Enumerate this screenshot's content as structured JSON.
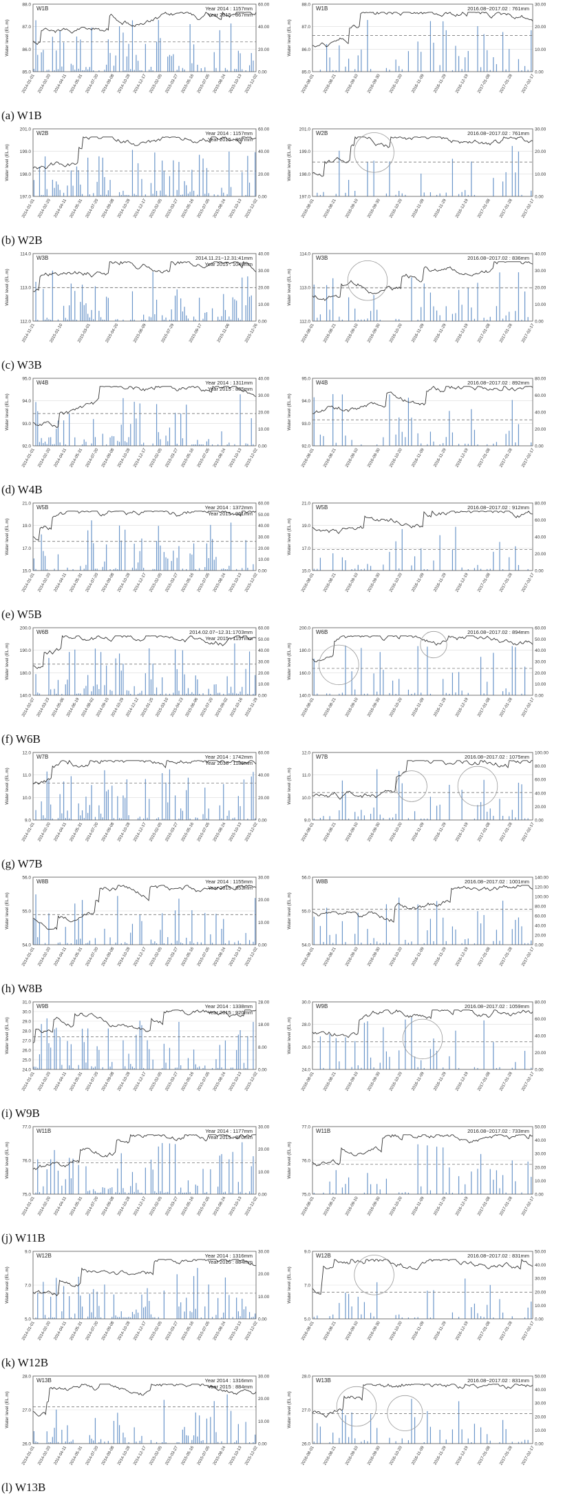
{
  "figure": {
    "rows": [
      {
        "caption": "(a) W1B",
        "left": {
          "well": "W1B",
          "lines": [
            "Year 2014 : 1157mm",
            "Year 2015 : 867mm"
          ],
          "ylabel": "Water level (EL.m)",
          "y_ticks": [
            "88.0",
            "87.0",
            "86.0",
            "85.0"
          ],
          "r_ticks": [
            "60.00",
            "40.00",
            "20.00",
            "0.00"
          ],
          "x_ticks": [
            "2014-01-01",
            "2014-02-20",
            "2014-04-11",
            "2014-05-31",
            "2014-07-20",
            "2014-09-08",
            "2014-10-28",
            "2014-12-17",
            "2015-02-05",
            "2015-03-27",
            "2015-05-16",
            "2015-07-05",
            "2015-08-24",
            "2015-10-13",
            "2015-12-02"
          ]
        },
        "right": {
          "well": "W1B",
          "lines": [
            "2016.08~2017.02 : 761mm"
          ],
          "y_ticks": [
            "88.0",
            "87.0",
            "86.0",
            "85.0"
          ],
          "r_ticks": [
            "30.00",
            "20.00",
            "10.00",
            "0.00"
          ],
          "x_ticks": [
            "2016-08-01",
            "2016-08-21",
            "2016-09-10",
            "2016-09-30",
            "2016-10-20",
            "2016-11-09",
            "2016-11-29",
            "2016-12-19",
            "2017-01-08",
            "2017-01-28",
            "2017-02-17"
          ]
        }
      },
      {
        "caption": "(b) W2B",
        "left": {
          "well": "W2B",
          "lines": [
            "Year 2014 : 1157mm",
            "Year 2015 : 867mm"
          ],
          "ylabel": "Water level (EL.m)",
          "y_ticks": [
            "201.0",
            "199.0",
            "198.0",
            "197.0"
          ],
          "r_ticks": [
            "60.00",
            "40.00",
            "20.00",
            "0.00"
          ],
          "x_ticks": [
            "2014-01-01",
            "2014-02-20",
            "2014-04-11",
            "2014-05-31",
            "2014-07-20",
            "2014-09-08",
            "2014-10-28",
            "2014-12-17",
            "2015-02-05",
            "2015-03-27",
            "2015-05-16",
            "2015-07-05",
            "2015-08-24",
            "2015-10-13",
            "2015-12-02"
          ]
        },
        "right": {
          "well": "W2B",
          "lines": [
            "2016.08~2017.02 : 761mm"
          ],
          "y_ticks": [
            "201.0",
            "199.0",
            "198.0",
            "197.0"
          ],
          "r_ticks": [
            "30.00",
            "20.00",
            "10.00",
            "0.00"
          ],
          "x_ticks": [
            "2016-08-01",
            "2016-08-21",
            "2016-09-10",
            "2016-09-30",
            "2016-10-20",
            "2016-11-09",
            "2016-11-29",
            "2016-12-19",
            "2017-01-08",
            "2017-01-28",
            "2017-02-17"
          ]
        }
      },
      {
        "caption": "(c) W3B",
        "left": {
          "well": "W3B",
          "lines": [
            "2014.11.21~12.31:41mm",
            "Year 2015 : 1040mm"
          ],
          "ylabel": "Water level (EL.m)",
          "y_ticks": [
            "114.0",
            "113.0",
            "112.0"
          ],
          "r_ticks": [
            "40.00",
            "30.00",
            "20.00",
            "10.00",
            "0.00"
          ],
          "x_ticks": [
            "2014-11-21",
            "2015-01-10",
            "2015-03-01",
            "2015-04-20",
            "2015-06-09",
            "2015-07-29",
            "2015-09-17",
            "2015-11-06",
            "2015-12-26"
          ]
        },
        "right": {
          "well": "W3B",
          "lines": [
            "2016.08~2017.02 : 836mm"
          ],
          "y_ticks": [
            "114.0",
            "113.0",
            "112.0"
          ],
          "r_ticks": [
            "40.00",
            "30.00",
            "20.00",
            "10.00",
            "0.00"
          ],
          "x_ticks": [
            "2016-08-01",
            "2016-08-21",
            "2016-09-10",
            "2016-09-30",
            "2016-10-20",
            "2016-11-09",
            "2016-11-29",
            "2016-12-19",
            "2017-01-08",
            "2017-01-28",
            "2017-02-17"
          ]
        }
      },
      {
        "caption": "(d) W4B",
        "left": {
          "well": "W4B",
          "lines": [
            "Year 2014 : 1311mm",
            "Year 2015 : 885mm"
          ],
          "ylabel": "Water level (EL.m)",
          "y_ticks": [
            "95.0",
            "94.0",
            "93.0",
            "92.0"
          ],
          "r_ticks": [
            "40.00",
            "30.00",
            "20.00",
            "10.00",
            "0.00"
          ],
          "x_ticks": [
            "2014-01-01",
            "2014-02-20",
            "2014-04-11",
            "2014-05-31",
            "2014-07-20",
            "2014-09-08",
            "2014-10-28",
            "2014-12-17",
            "2015-02-05",
            "2015-03-27",
            "2015-05-16",
            "2015-07-05",
            "2015-08-24",
            "2015-10-13",
            "2015-12-02"
          ]
        },
        "right": {
          "well": "W4B",
          "lines": [
            "2016.08~2017.02 : 892mm"
          ],
          "y_ticks": [
            "95.0",
            "94.0",
            "93.0",
            "92.0"
          ],
          "r_ticks": [
            "80.00",
            "60.00",
            "40.00",
            "20.00",
            "0.00"
          ],
          "x_ticks": [
            "2016-08-01",
            "2016-08-21",
            "2016-09-10",
            "2016-09-30",
            "2016-10-20",
            "2016-11-09",
            "2016-11-29",
            "2016-12-19",
            "2017-01-08",
            "2017-01-28",
            "2017-02-17"
          ]
        }
      },
      {
        "caption": "(e) W5B",
        "left": {
          "well": "W5B",
          "lines": [
            "Year 2014 : 1372mm",
            "Year 2015 : 961mm"
          ],
          "ylabel": "Water level (EL.m)",
          "y_ticks": [
            "21.0",
            "19.0",
            "17.0",
            "15.0"
          ],
          "r_ticks": [
            "60.00",
            "50.00",
            "40.00",
            "30.00",
            "20.00",
            "10.00",
            "0.00"
          ],
          "x_ticks": [
            "2014-01-01",
            "2014-02-20",
            "2014-04-11",
            "2014-05-31",
            "2014-07-20",
            "2014-09-08",
            "2014-10-28",
            "2014-12-17",
            "2015-02-05",
            "2015-03-27",
            "2015-05-16",
            "2015-07-05",
            "2015-08-24",
            "2015-10-13",
            "2015-12-02"
          ]
        },
        "right": {
          "well": "W5B",
          "lines": [
            "2016.08~2017.02 : 912mm"
          ],
          "y_ticks": [
            "21.0",
            "19.0",
            "17.0",
            "15.0"
          ],
          "r_ticks": [
            "80.00",
            "60.00",
            "40.00",
            "20.00",
            "0.00"
          ],
          "x_ticks": [
            "2016-08-01",
            "2016-08-21",
            "2016-09-10",
            "2016-09-30",
            "2016-10-20",
            "2016-11-09",
            "2016-11-29",
            "2016-12-19",
            "2017-01-08",
            "2017-01-28",
            "2017-02-17"
          ]
        }
      },
      {
        "caption": "(f) W6B",
        "left": {
          "well": "W6B",
          "lines": [
            "2014.02.07~12.31:1703mm",
            "Year 2015 : 1157mm"
          ],
          "ylabel": "Water level (EL.m)",
          "y_ticks": [
            "200.0",
            "190.0",
            "180.0",
            "140.0"
          ],
          "r_ticks": [
            "60.00",
            "50.00",
            "40.00",
            "30.00",
            "20.00",
            "10.00",
            "0.00"
          ],
          "x_ticks": [
            "2014-02-07",
            "2014-03-23",
            "2014-05-06",
            "2014-06-19",
            "2014-08-02",
            "2014-09-15",
            "2014-10-29",
            "2014-12-12",
            "2015-01-25",
            "2015-03-10",
            "2015-04-23",
            "2015-06-06",
            "2015-07-20",
            "2015-09-02",
            "2015-10-16",
            "2015-11-29"
          ]
        },
        "right": {
          "well": "W6B",
          "lines": [
            "2016.08~2017.02 : 894mm"
          ],
          "y_ticks": [
            "200.0",
            "180.0",
            "160.0",
            "140.0"
          ],
          "r_ticks": [
            "60.00",
            "50.00",
            "40.00",
            "30.00",
            "20.00",
            "10.00",
            "0.00"
          ],
          "x_ticks": [
            "2016-08-01",
            "2016-08-21",
            "2016-09-10",
            "2016-09-30",
            "2016-10-20",
            "2016-11-09",
            "2016-11-29",
            "2016-12-19",
            "2017-01-08",
            "2017-01-28",
            "2017-02-17"
          ]
        }
      },
      {
        "caption": "(g) W7B",
        "left": {
          "well": "W7B",
          "lines": [
            "Year 2014 : 1742mm",
            "Year 2015 : 1185mm"
          ],
          "ylabel": "Water level (EL.m)",
          "y_ticks": [
            "12.0",
            "11.0",
            "10.0",
            "9.0"
          ],
          "r_ticks": [
            "60.00",
            "40.00",
            "20.00",
            "0.00"
          ],
          "x_ticks": [
            "2014-01-01",
            "2014-02-20",
            "2014-04-11",
            "2014-05-31",
            "2014-07-20",
            "2014-09-08",
            "2014-10-28",
            "2014-12-17",
            "2015-02-05",
            "2015-03-27",
            "2015-05-16",
            "2015-07-05",
            "2015-08-24",
            "2015-10-13",
            "2015-12-02"
          ]
        },
        "right": {
          "well": "W7B",
          "lines": [
            "2016.08~2017.02 : 1075mm"
          ],
          "y_ticks": [
            "12.0",
            "11.0",
            "10.0",
            "9.0"
          ],
          "r_ticks": [
            "100.00",
            "80.00",
            "60.00",
            "40.00",
            "20.00",
            "0.00"
          ],
          "x_ticks": [
            "2016-08-01",
            "2016-08-21",
            "2016-09-10",
            "2016-09-30",
            "2016-10-20",
            "2016-11-09",
            "2016-11-29",
            "2016-12-19",
            "2017-01-08",
            "2017-01-28",
            "2017-02-17"
          ]
        }
      },
      {
        "caption": "(h) W8B",
        "left": {
          "well": "W8B",
          "lines": [
            "Year 2014 : 1155mm",
            "Year 2015 : 853mm"
          ],
          "ylabel": "Water level (EL.m)",
          "y_ticks": [
            "56.0",
            "55.0",
            "54.0"
          ],
          "r_ticks": [
            "30.00",
            "20.00",
            "10.00",
            "0.00"
          ],
          "x_ticks": [
            "2014-01-01",
            "2014-02-20",
            "2014-04-11",
            "2014-05-31",
            "2014-07-20",
            "2014-09-08",
            "2014-10-28",
            "2014-12-17",
            "2015-02-05",
            "2015-03-27",
            "2015-05-16",
            "2015-07-05",
            "2015-08-24",
            "2015-10-13",
            "2015-12-02"
          ]
        },
        "right": {
          "well": "W8B",
          "lines": [
            "2016.08~2017.02 : 1001mm"
          ],
          "y_ticks": [
            "56.0",
            "55.0",
            "54.0"
          ],
          "r_ticks": [
            "140.00",
            "120.00",
            "100.00",
            "80.00",
            "60.00",
            "40.00",
            "20.00",
            "0.00"
          ],
          "x_ticks": [
            "2016-08-01",
            "2016-08-21",
            "2016-09-10",
            "2016-09-30",
            "2016-10-20",
            "2016-11-09",
            "2016-11-29",
            "2016-12-19",
            "2017-01-08",
            "2017-01-28",
            "2017-02-17"
          ]
        }
      },
      {
        "caption": "(i) W9B",
        "left": {
          "well": "W9B",
          "lines": [
            "Year 2014 : 1338mm",
            "Year 2015 : 920mm"
          ],
          "ylabel": "Water level (EL.m)",
          "y_ticks": [
            "31.0",
            "30.0",
            "29.0",
            "28.0",
            "27.0",
            "26.0",
            "25.0",
            "24.0"
          ],
          "r_ticks": [
            "28.00",
            "18.00",
            "8.00",
            "0.00"
          ],
          "x_ticks": [
            "2014-01-01",
            "2014-02-20",
            "2014-04-11",
            "2014-05-31",
            "2014-07-20",
            "2014-09-08",
            "2014-10-28",
            "2014-12-17",
            "2015-02-05",
            "2015-03-27",
            "2015-05-16",
            "2015-07-05",
            "2015-08-24",
            "2015-10-13",
            "2015-12-02"
          ]
        },
        "right": {
          "well": "W9B",
          "lines": [
            "2016.08~2017.02 : 1059mm"
          ],
          "y_ticks": [
            "30.0",
            "28.0",
            "26.0",
            "24.0"
          ],
          "r_ticks": [
            "80.00",
            "60.00",
            "40.00",
            "20.00",
            "0.00"
          ],
          "x_ticks": [
            "2016-08-01",
            "2016-08-21",
            "2016-09-10",
            "2016-09-30",
            "2016-10-20",
            "2016-11-09",
            "2016-11-29",
            "2016-12-19",
            "2017-01-08",
            "2017-01-28",
            "2017-02-17"
          ]
        }
      },
      {
        "caption": "(j) W11B",
        "left": {
          "well": "W11B",
          "lines": [
            "Year 2014 : 1177mm",
            "Year 2015 : 870mm"
          ],
          "ylabel": "Water level (EL.m)",
          "y_ticks": [
            "77.0",
            "76.0",
            "75.0"
          ],
          "r_ticks": [
            "30.00",
            "20.00",
            "10.00",
            "0.00"
          ],
          "x_ticks": [
            "2014-01-01",
            "2014-02-20",
            "2014-04-11",
            "2014-05-31",
            "2014-07-20",
            "2014-09-08",
            "2014-10-28",
            "2014-12-17",
            "2015-02-05",
            "2015-03-27",
            "2015-05-16",
            "2015-07-05",
            "2015-08-24",
            "2015-10-13",
            "2015-12-02"
          ]
        },
        "right": {
          "well": "W11B",
          "lines": [
            "2016.08~2017.02 : 733mm"
          ],
          "y_ticks": [
            "77.0",
            "76.0",
            "75.0"
          ],
          "r_ticks": [
            "50.00",
            "40.00",
            "30.00",
            "20.00",
            "10.00",
            "0.00"
          ],
          "x_ticks": [
            "2016-08-01",
            "2016-08-21",
            "2016-09-10",
            "2016-09-30",
            "2016-10-20",
            "2016-11-09",
            "2016-11-29",
            "2016-12-19",
            "2017-01-08",
            "2017-01-28",
            "2017-02-17"
          ]
        }
      },
      {
        "caption": "(k) W12B",
        "left": {
          "well": "W12B",
          "lines": [
            "Year 2014 : 1316mm",
            "Year 2015 : 884mm"
          ],
          "ylabel": "Water level (EL.m)",
          "y_ticks": [
            "9.0",
            "7.0",
            "5.0"
          ],
          "r_ticks": [
            "30.00",
            "20.00",
            "10.00",
            "0.00"
          ],
          "x_ticks": [
            "2014-01-01",
            "2014-02-20",
            "2014-04-11",
            "2014-05-31",
            "2014-07-20",
            "2014-09-08",
            "2014-10-28",
            "2014-12-17",
            "2015-02-05",
            "2015-03-27",
            "2015-05-16",
            "2015-07-05",
            "2015-08-24",
            "2015-10-13",
            "2015-12-02"
          ]
        },
        "right": {
          "well": "W12B",
          "lines": [
            "2016.08~2017.02 : 831mm"
          ],
          "y_ticks": [
            "9.0",
            "7.0",
            "5.0"
          ],
          "r_ticks": [
            "50.00",
            "40.00",
            "30.00",
            "20.00",
            "10.00",
            "0.00"
          ],
          "x_ticks": [
            "2016-08-01",
            "2016-08-21",
            "2016-09-10",
            "2016-09-30",
            "2016-10-20",
            "2016-11-09",
            "2016-11-29",
            "2016-12-19",
            "2017-01-08",
            "2017-01-28",
            "2017-02-17"
          ]
        }
      },
      {
        "caption": "(l) W13B",
        "left": {
          "well": "W13B",
          "lines": [
            "Year 2014 : 1316mm",
            "Year 2015 : 884mm"
          ],
          "ylabel": "Water level (EL.m)",
          "y_ticks": [
            "28.0",
            "27.0",
            "26.0"
          ],
          "r_ticks": [
            "30.00",
            "20.00",
            "10.00",
            "0.00"
          ],
          "x_ticks": [
            "2014-01-01",
            "2014-02-20",
            "2014-04-11",
            "2014-05-31",
            "2014-07-20",
            "2014-09-08",
            "2014-10-28",
            "2014-12-17",
            "2015-02-05",
            "2015-03-27",
            "2015-05-16",
            "2015-07-05",
            "2015-08-24",
            "2015-10-13",
            "2015-12-02"
          ]
        },
        "right": {
          "well": "W13B",
          "lines": [
            "2016.08~2017.02 : 831mm"
          ],
          "y_ticks": [
            "28.0",
            "27.0",
            "26.0"
          ],
          "r_ticks": [
            "50.00",
            "40.00",
            "30.00",
            "20.00",
            "10.00",
            "0.00"
          ],
          "x_ticks": [
            "2016-08-01",
            "2016-08-21",
            "2016-09-10",
            "2016-09-30",
            "2016-10-20",
            "2016-11-09",
            "2016-11-29",
            "2016-12-19",
            "2017-01-08",
            "2017-01-28",
            "2017-02-17"
          ]
        }
      }
    ]
  },
  "colors": {
    "line": "#333333",
    "rain": "#6a95c9",
    "grid": "#d9d9d9",
    "dash": "#777777",
    "axis": "#555555"
  },
  "chart_data": {
    "type": "line",
    "description_series": [
      "water level line",
      "daily rainfall bars"
    ],
    "layout_grid": "12 rows x 2 columns",
    "dashed_reference_line": true,
    "circled_annotations": true
  }
}
